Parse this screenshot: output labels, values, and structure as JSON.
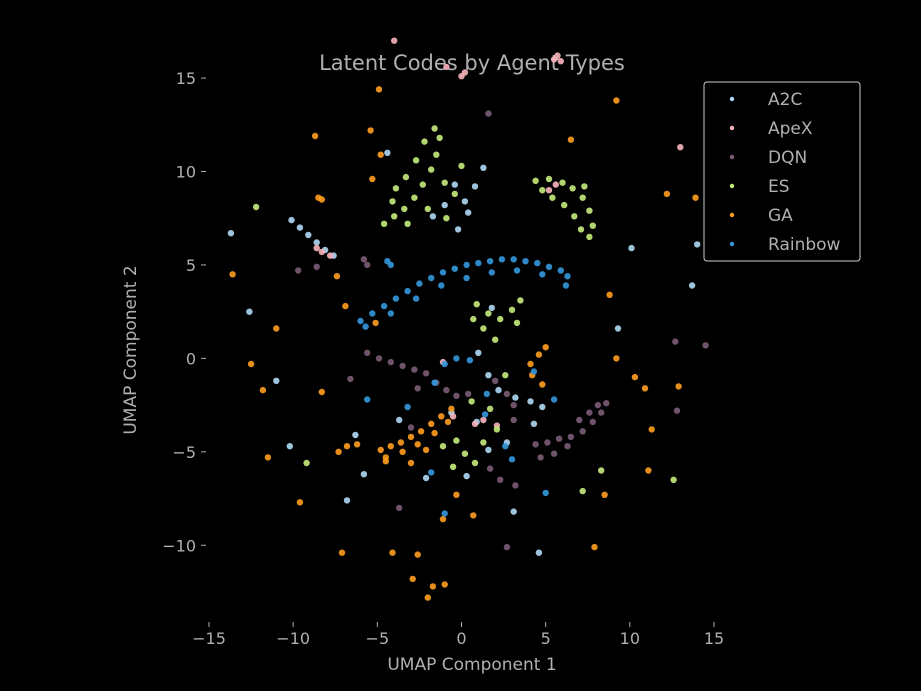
{
  "chart_data": {
    "type": "scatter",
    "title": "Latent Codes by Agent Types",
    "xlabel": "UMAP Component 1",
    "ylabel": "UMAP Component 2",
    "xlim": [
      -15,
      15
    ],
    "ylim": [
      -14,
      18
    ],
    "xticks": [
      -15,
      -10,
      -5,
      0,
      5,
      10,
      15
    ],
    "yticks": [
      -10,
      -5,
      0,
      5,
      10,
      15
    ],
    "xtick_labels": [
      "−15",
      "−10",
      "−5",
      "0",
      "5",
      "10",
      "15"
    ],
    "ytick_labels": [
      "−10",
      "−5",
      "0",
      "5",
      "10",
      "15"
    ],
    "grid": false,
    "legend_position": "top-right",
    "series": [
      {
        "name": "A2C",
        "color": "#aed8f5",
        "points": [
          [
            -10.1,
            7.4
          ],
          [
            -9.6,
            7.0
          ],
          [
            -9.1,
            6.6
          ],
          [
            -8.6,
            6.2
          ],
          [
            -8.1,
            5.8
          ],
          [
            -7.6,
            5.5
          ],
          [
            -13.7,
            6.7
          ],
          [
            -12.6,
            2.5
          ],
          [
            -11.0,
            -1.2
          ],
          [
            -10.2,
            -4.7
          ],
          [
            -6.8,
            -7.6
          ],
          [
            -5.8,
            -6.2
          ],
          [
            -2.1,
            -6.4
          ],
          [
            -1.7,
            7.6
          ],
          [
            -1.0,
            8.2
          ],
          [
            -0.4,
            9.3
          ],
          [
            0.2,
            8.4
          ],
          [
            0.8,
            9.2
          ],
          [
            1.3,
            10.2
          ],
          [
            -0.2,
            6.9
          ],
          [
            0.4,
            7.8
          ],
          [
            1.8,
            2.7
          ],
          [
            1.0,
            0.3
          ],
          [
            1.6,
            -0.9
          ],
          [
            2.2,
            -1.7
          ],
          [
            3.2,
            -2.1
          ],
          [
            4.1,
            -2.3
          ],
          [
            4.8,
            -2.6
          ],
          [
            -0.6,
            -2.9
          ],
          [
            0.9,
            -3.4
          ],
          [
            1.6,
            -4.9
          ],
          [
            2.7,
            -4.5
          ],
          [
            4.3,
            -3.5
          ],
          [
            0.3,
            -6.3
          ],
          [
            3.1,
            -8.2
          ],
          [
            4.6,
            -10.4
          ],
          [
            10.1,
            5.9
          ],
          [
            13.7,
            3.9
          ],
          [
            14.0,
            6.1
          ],
          [
            -4.4,
            11.0
          ],
          [
            -3.7,
            -3.3
          ],
          [
            -6.3,
            -4.1
          ],
          [
            9.3,
            1.6
          ]
        ]
      },
      {
        "name": "ApeX",
        "color": "#fbb4bc",
        "points": [
          [
            5.7,
            16.2
          ],
          [
            5.5,
            16.0
          ],
          [
            5.9,
            15.9
          ],
          [
            -4.0,
            17.0
          ],
          [
            -0.9,
            15.6
          ],
          [
            0.2,
            15.3
          ],
          [
            0.0,
            15.1
          ],
          [
            13.0,
            11.3
          ],
          [
            -8.6,
            5.9
          ],
          [
            -8.3,
            5.7
          ],
          [
            -7.8,
            5.5
          ],
          [
            5.2,
            9.0
          ],
          [
            5.6,
            9.3
          ],
          [
            1.3,
            -3.3
          ],
          [
            0.8,
            -3.5
          ],
          [
            2.1,
            -3.6
          ],
          [
            -0.5,
            -3.1
          ],
          [
            -1.1,
            -0.2
          ]
        ]
      },
      {
        "name": "DQN",
        "color": "#7b5c77",
        "points": [
          [
            -5.6,
            0.3
          ],
          [
            -4.9,
            0.0
          ],
          [
            -4.2,
            -0.2
          ],
          [
            -3.5,
            -0.4
          ],
          [
            -2.8,
            -0.6
          ],
          [
            -2.1,
            -0.8
          ],
          [
            -1.5,
            -1.3
          ],
          [
            -0.9,
            -1.7
          ],
          [
            -0.3,
            -2.0
          ],
          [
            0.4,
            -1.9
          ],
          [
            4.4,
            -4.6
          ],
          [
            5.1,
            -4.5
          ],
          [
            5.8,
            -4.3
          ],
          [
            6.5,
            -4.2
          ],
          [
            7.2,
            -3.9
          ],
          [
            7.8,
            -3.4
          ],
          [
            8.3,
            -2.9
          ],
          [
            8.6,
            -2.4
          ],
          [
            4.7,
            -5.3
          ],
          [
            5.5,
            -5.1
          ],
          [
            6.3,
            -4.7
          ],
          [
            7.0,
            -3.3
          ],
          [
            7.6,
            -2.9
          ],
          [
            8.1,
            -2.5
          ],
          [
            2.0,
            -1.2
          ],
          [
            2.7,
            -1.9
          ],
          [
            3.1,
            -2.5
          ],
          [
            3.1,
            -3.3
          ],
          [
            1.7,
            -5.9
          ],
          [
            2.3,
            -6.5
          ],
          [
            3.2,
            -6.8
          ],
          [
            1.6,
            13.1
          ],
          [
            -8.6,
            4.9
          ],
          [
            -9.7,
            4.7
          ],
          [
            -5.8,
            5.3
          ],
          [
            -5.6,
            5.0
          ],
          [
            -3.0,
            -3.7
          ],
          [
            -2.6,
            -1.6
          ],
          [
            -3.7,
            -8.0
          ],
          [
            12.8,
            -2.8
          ],
          [
            12.7,
            0.9
          ],
          [
            14.5,
            0.7
          ],
          [
            -6.6,
            -1.1
          ],
          [
            2.7,
            -10.1
          ]
        ]
      },
      {
        "name": "ES",
        "color": "#c5ec7c",
        "points": [
          [
            -4.6,
            7.2
          ],
          [
            -4.0,
            7.6
          ],
          [
            -3.4,
            8.0
          ],
          [
            -2.8,
            8.6
          ],
          [
            -2.3,
            9.3
          ],
          [
            -1.8,
            10.1
          ],
          [
            -1.5,
            10.9
          ],
          [
            -1.3,
            11.8
          ],
          [
            -1.6,
            12.3
          ],
          [
            -2.2,
            11.6
          ],
          [
            -2.7,
            10.6
          ],
          [
            -3.3,
            9.7
          ],
          [
            -3.9,
            9.1
          ],
          [
            -0.9,
            7.5
          ],
          [
            -0.4,
            8.8
          ],
          [
            0.0,
            10.3
          ],
          [
            -1.0,
            9.4
          ],
          [
            -2.0,
            8.0
          ],
          [
            -3.2,
            7.2
          ],
          [
            -4.1,
            8.4
          ],
          [
            4.4,
            9.5
          ],
          [
            5.2,
            9.6
          ],
          [
            6.0,
            9.4
          ],
          [
            6.6,
            9.1
          ],
          [
            7.2,
            8.6
          ],
          [
            7.6,
            7.9
          ],
          [
            7.8,
            7.1
          ],
          [
            7.6,
            6.5
          ],
          [
            7.1,
            6.9
          ],
          [
            6.7,
            7.6
          ],
          [
            6.1,
            8.2
          ],
          [
            5.4,
            8.6
          ],
          [
            4.8,
            9.0
          ],
          [
            7.3,
            9.2
          ],
          [
            0.9,
            2.9
          ],
          [
            1.6,
            2.4
          ],
          [
            2.3,
            2.1
          ],
          [
            3.0,
            2.6
          ],
          [
            3.5,
            3.1
          ],
          [
            1.3,
            1.6
          ],
          [
            2.0,
            1.0
          ],
          [
            3.3,
            1.9
          ],
          [
            0.7,
            2.1
          ],
          [
            -0.3,
            -4.4
          ],
          [
            0.2,
            -5.1
          ],
          [
            0.8,
            -5.6
          ],
          [
            -0.5,
            -5.8
          ],
          [
            -1.1,
            -4.7
          ],
          [
            1.3,
            -4.5
          ],
          [
            0.6,
            -2.3
          ],
          [
            1.7,
            -2.7
          ],
          [
            2.6,
            -0.9
          ],
          [
            -12.2,
            8.1
          ],
          [
            -9.2,
            -5.6
          ],
          [
            12.6,
            -6.5
          ],
          [
            7.2,
            -7.1
          ],
          [
            2.1,
            -3.8
          ],
          [
            8.3,
            -6.0
          ]
        ]
      },
      {
        "name": "GA",
        "color": "#ff9d1e",
        "points": [
          [
            -4.8,
            -4.9
          ],
          [
            -4.2,
            -4.7
          ],
          [
            -3.6,
            -4.5
          ],
          [
            -3.0,
            -4.2
          ],
          [
            -2.4,
            -3.9
          ],
          [
            -1.8,
            -3.5
          ],
          [
            -1.2,
            -3.1
          ],
          [
            -0.6,
            -2.7
          ],
          [
            -4.5,
            -5.3
          ],
          [
            -3.5,
            -5.0
          ],
          [
            -2.6,
            -4.6
          ],
          [
            -1.6,
            -4.0
          ],
          [
            -0.8,
            -3.4
          ],
          [
            -3.0,
            -5.6
          ],
          [
            -2.1,
            -4.9
          ],
          [
            4.1,
            -0.3
          ],
          [
            4.6,
            0.2
          ],
          [
            5.0,
            0.6
          ],
          [
            4.2,
            -0.9
          ],
          [
            4.8,
            -1.4
          ],
          [
            -6.8,
            -4.7
          ],
          [
            -6.2,
            -4.6
          ],
          [
            -7.3,
            -5.0
          ],
          [
            -8.3,
            8.5
          ],
          [
            -8.5,
            8.6
          ],
          [
            -4.9,
            14.4
          ],
          [
            -5.4,
            12.2
          ],
          [
            -8.7,
            11.9
          ],
          [
            -11.0,
            1.6
          ],
          [
            -12.5,
            -0.3
          ],
          [
            -11.5,
            -5.3
          ],
          [
            -9.6,
            -7.7
          ],
          [
            -13.6,
            4.5
          ],
          [
            -2.6,
            -10.5
          ],
          [
            -1.7,
            -12.2
          ],
          [
            -2.0,
            -12.8
          ],
          [
            -1.0,
            -12.1
          ],
          [
            -4.1,
            -10.4
          ],
          [
            0.7,
            -8.4
          ],
          [
            -1.1,
            -8.6
          ],
          [
            6.5,
            11.7
          ],
          [
            8.8,
            3.4
          ],
          [
            9.2,
            0.0
          ],
          [
            10.3,
            -1.0
          ],
          [
            10.9,
            -1.6
          ],
          [
            11.3,
            -3.8
          ],
          [
            11.1,
            -6.0
          ],
          [
            12.9,
            -1.5
          ],
          [
            13.9,
            8.6
          ],
          [
            12.2,
            8.8
          ],
          [
            9.2,
            13.8
          ],
          [
            -2.9,
            -11.8
          ],
          [
            -4.5,
            -5.5
          ],
          [
            -8.3,
            -1.8
          ],
          [
            -6.9,
            2.8
          ],
          [
            -5.1,
            1.9
          ],
          [
            -7.1,
            -10.4
          ],
          [
            -0.3,
            -7.3
          ],
          [
            7.9,
            -10.1
          ],
          [
            8.5,
            -7.3
          ],
          [
            -11.8,
            -1.7
          ],
          [
            -4.8,
            10.9
          ],
          [
            -5.3,
            9.6
          ],
          [
            -7.4,
            4.4
          ]
        ]
      },
      {
        "name": "Rainbow",
        "color": "#3498db",
        "points": [
          [
            -6.0,
            2.0
          ],
          [
            -5.3,
            2.4
          ],
          [
            -4.6,
            2.8
          ],
          [
            -3.9,
            3.2
          ],
          [
            -3.2,
            3.6
          ],
          [
            -2.5,
            4.0
          ],
          [
            -1.8,
            4.3
          ],
          [
            -1.1,
            4.6
          ],
          [
            -0.4,
            4.8
          ],
          [
            0.3,
            5.0
          ],
          [
            1.0,
            5.1
          ],
          [
            1.7,
            5.2
          ],
          [
            2.4,
            5.3
          ],
          [
            3.1,
            5.3
          ],
          [
            3.8,
            5.2
          ],
          [
            4.5,
            5.1
          ],
          [
            5.2,
            4.9
          ],
          [
            5.9,
            4.7
          ],
          [
            6.3,
            4.4
          ],
          [
            -5.7,
            1.7
          ],
          [
            -4.2,
            2.4
          ],
          [
            -2.7,
            3.2
          ],
          [
            -1.2,
            3.9
          ],
          [
            0.3,
            4.3
          ],
          [
            1.8,
            4.6
          ],
          [
            3.3,
            4.7
          ],
          [
            4.8,
            4.5
          ],
          [
            6.2,
            3.9
          ],
          [
            -4.4,
            5.2
          ],
          [
            -4.2,
            5.0
          ],
          [
            -1.6,
            -1.3
          ],
          [
            -1.0,
            -0.3
          ],
          [
            -0.3,
            0.0
          ],
          [
            0.5,
            -0.1
          ],
          [
            1.5,
            -1.9
          ],
          [
            1.4,
            -3.0
          ],
          [
            2.6,
            -4.7
          ],
          [
            3.0,
            -5.4
          ],
          [
            5.0,
            -7.2
          ],
          [
            5.5,
            -2.2
          ],
          [
            4.3,
            -0.7
          ],
          [
            -1.0,
            -8.3
          ],
          [
            -5.6,
            -2.2
          ],
          [
            -3.2,
            -2.6
          ],
          [
            -1.8,
            -6.1
          ]
        ]
      }
    ]
  }
}
